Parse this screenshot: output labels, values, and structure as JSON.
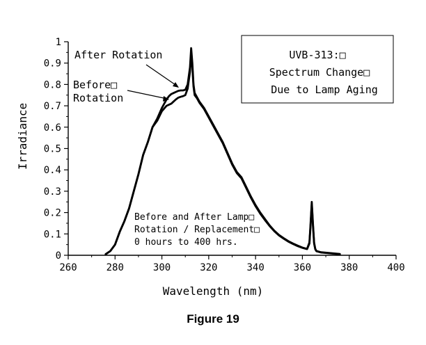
{
  "chart_data": {
    "type": "line",
    "xlabel": "Wavelength (nm)",
    "ylabel": "Irradiance",
    "xlim": [
      260,
      400
    ],
    "ylim": [
      0,
      1
    ],
    "x_ticks": [
      260,
      280,
      300,
      320,
      340,
      360,
      380,
      400
    ],
    "y_ticks": [
      0,
      0.1,
      0.2,
      0.3,
      0.4,
      0.5,
      0.6,
      0.7,
      0.8,
      0.9,
      1
    ],
    "x_tick_labels": [
      "260",
      "280",
      "300",
      "320",
      "340",
      "360",
      "380",
      "400"
    ],
    "y_tick_labels": [
      "0",
      "0.1",
      "0.2",
      "0.3",
      "0.4",
      "0.5",
      "0.6",
      "0.7",
      "0.8",
      "0.9",
      "1"
    ],
    "grid": false,
    "legend_box_lines": [
      "UVB-313:□",
      "Spectrum Change□",
      "Due to Lamp Aging"
    ],
    "annotations": {
      "after_rotation": "After Rotation",
      "before_rotation_lines": [
        "Before□",
        "Rotation"
      ],
      "note_lines": [
        "Before and After Lamp□",
        "Rotation / Replacement□",
        "0 hours to 400 hrs."
      ]
    },
    "series": [
      {
        "name": "After Rotation",
        "x": [
          276,
          278,
          280,
          282,
          284,
          286,
          288,
          290,
          292,
          294,
          296,
          298,
          300,
          302,
          303,
          304,
          305,
          306,
          307,
          308,
          309,
          310,
          311,
          312,
          312.5,
          313,
          313.5,
          314,
          315,
          316,
          318,
          320,
          322,
          324,
          326,
          328,
          330,
          332,
          334,
          336,
          338,
          340,
          342,
          344,
          346,
          348,
          350,
          352,
          354,
          356,
          358,
          360,
          362,
          363,
          363.5,
          364,
          364.5,
          365,
          365.5,
          366,
          368,
          372,
          376
        ],
        "y": [
          0.005,
          0.02,
          0.05,
          0.11,
          0.16,
          0.22,
          0.3,
          0.38,
          0.47,
          0.53,
          0.6,
          0.64,
          0.69,
          0.73,
          0.745,
          0.755,
          0.76,
          0.765,
          0.77,
          0.772,
          0.772,
          0.775,
          0.8,
          0.88,
          0.97,
          0.9,
          0.8,
          0.76,
          0.74,
          0.72,
          0.69,
          0.65,
          0.61,
          0.57,
          0.53,
          0.48,
          0.43,
          0.39,
          0.365,
          0.32,
          0.275,
          0.235,
          0.2,
          0.17,
          0.14,
          0.115,
          0.095,
          0.08,
          0.066,
          0.055,
          0.045,
          0.036,
          0.03,
          0.06,
          0.15,
          0.25,
          0.15,
          0.06,
          0.03,
          0.02,
          0.014,
          0.01,
          0.006
        ]
      },
      {
        "name": "Before Rotation",
        "x": [
          276,
          278,
          280,
          282,
          284,
          286,
          288,
          290,
          292,
          294,
          296,
          298,
          300,
          302,
          303,
          304,
          305,
          306,
          307,
          308,
          309,
          310,
          311,
          312,
          312.5,
          313,
          313.5,
          314,
          315,
          316,
          318,
          320,
          322,
          324,
          326,
          328,
          330,
          332,
          334,
          336,
          338,
          340,
          342,
          344,
          346,
          348,
          350,
          352,
          354,
          356,
          358,
          360,
          362,
          363,
          363.5,
          364,
          364.5,
          365,
          365.5,
          366,
          368,
          372,
          376
        ],
        "y": [
          0.005,
          0.02,
          0.05,
          0.11,
          0.16,
          0.22,
          0.3,
          0.38,
          0.47,
          0.53,
          0.6,
          0.63,
          0.675,
          0.7,
          0.705,
          0.71,
          0.72,
          0.73,
          0.738,
          0.742,
          0.745,
          0.75,
          0.78,
          0.86,
          0.95,
          0.88,
          0.79,
          0.75,
          0.735,
          0.715,
          0.685,
          0.645,
          0.605,
          0.565,
          0.525,
          0.475,
          0.425,
          0.385,
          0.36,
          0.315,
          0.27,
          0.23,
          0.195,
          0.165,
          0.137,
          0.113,
          0.093,
          0.078,
          0.064,
          0.053,
          0.043,
          0.035,
          0.029,
          0.055,
          0.14,
          0.24,
          0.14,
          0.055,
          0.028,
          0.019,
          0.013,
          0.009,
          0.005
        ]
      }
    ]
  },
  "caption": "Figure 19"
}
